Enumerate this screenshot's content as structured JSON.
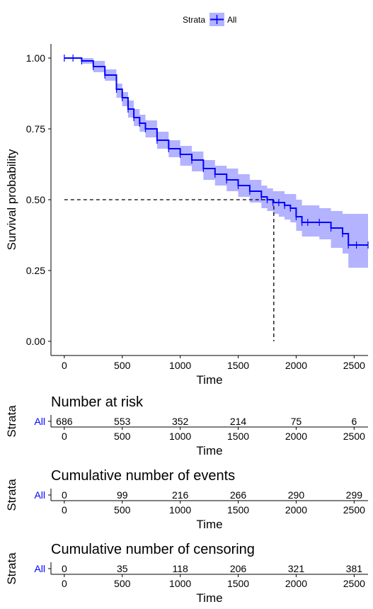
{
  "legend": {
    "title": "Strata",
    "entries": [
      {
        "label": "All",
        "color": "#0000ff"
      }
    ]
  },
  "chart_data": {
    "type": "line",
    "subtype": "kaplan-meier",
    "xlabel": "Time",
    "ylabel": "Survival probability",
    "xlim": [
      -115,
      2620
    ],
    "ylim": [
      -0.05,
      1.05
    ],
    "xticks": [
      0,
      500,
      1000,
      1500,
      2000,
      2500
    ],
    "yticks": [
      0.0,
      0.25,
      0.5,
      0.75,
      1.0
    ],
    "ytick_labels": [
      "0.00",
      "0.25",
      "0.50",
      "0.75",
      "1.00"
    ],
    "legend_position": "top",
    "median": {
      "time": 1807,
      "survival": 0.5
    },
    "series": [
      {
        "name": "All",
        "color": "#0000ff",
        "ci_color": "#b3b3ff",
        "time": [
          0,
          75,
          150,
          250,
          350,
          450,
          500,
          550,
          600,
          650,
          700,
          800,
          900,
          1000,
          1100,
          1200,
          1300,
          1400,
          1500,
          1600,
          1700,
          1750,
          1800,
          1850,
          1900,
          1950,
          2000,
          2050,
          2100,
          2200,
          2300,
          2400,
          2450,
          2520,
          2620
        ],
        "survival": [
          1.0,
          1.0,
          0.99,
          0.97,
          0.94,
          0.89,
          0.86,
          0.82,
          0.79,
          0.77,
          0.75,
          0.71,
          0.68,
          0.66,
          0.64,
          0.61,
          0.59,
          0.57,
          0.55,
          0.53,
          0.51,
          0.5,
          0.49,
          0.49,
          0.48,
          0.47,
          0.44,
          0.42,
          0.42,
          0.42,
          0.4,
          0.38,
          0.34,
          0.34,
          0.34
        ],
        "lower": [
          1.0,
          1.0,
          0.98,
          0.95,
          0.92,
          0.86,
          0.83,
          0.79,
          0.76,
          0.74,
          0.72,
          0.68,
          0.65,
          0.62,
          0.6,
          0.57,
          0.55,
          0.53,
          0.51,
          0.49,
          0.47,
          0.46,
          0.45,
          0.44,
          0.43,
          0.42,
          0.39,
          0.37,
          0.37,
          0.36,
          0.33,
          0.31,
          0.26,
          0.26,
          0.26
        ],
        "upper": [
          1.0,
          1.0,
          1.0,
          0.99,
          0.96,
          0.91,
          0.88,
          0.85,
          0.82,
          0.8,
          0.78,
          0.74,
          0.71,
          0.69,
          0.67,
          0.64,
          0.62,
          0.61,
          0.59,
          0.57,
          0.55,
          0.54,
          0.53,
          0.53,
          0.52,
          0.52,
          0.5,
          0.48,
          0.48,
          0.47,
          0.46,
          0.45,
          0.45,
          0.45,
          0.45
        ]
      }
    ]
  },
  "tables": [
    {
      "title": "Number at risk",
      "ylabel": "Strata",
      "row_label": "All",
      "xlabel": "Time",
      "times": [
        0,
        500,
        1000,
        1500,
        2000,
        2500
      ],
      "values": [
        "686",
        "553",
        "352",
        "214",
        "75",
        "6"
      ]
    },
    {
      "title": "Cumulative number of events",
      "ylabel": "Strata",
      "row_label": "All",
      "xlabel": "Time",
      "times": [
        0,
        500,
        1000,
        1500,
        2000,
        2500
      ],
      "values": [
        "0",
        "99",
        "216",
        "266",
        "290",
        "299"
      ]
    },
    {
      "title": "Cumulative number of censoring",
      "ylabel": "Strata",
      "row_label": "All",
      "xlabel": "Time",
      "times": [
        0,
        500,
        1000,
        1500,
        2000,
        2500
      ],
      "values": [
        "0",
        "35",
        "118",
        "206",
        "321",
        "381"
      ]
    }
  ]
}
